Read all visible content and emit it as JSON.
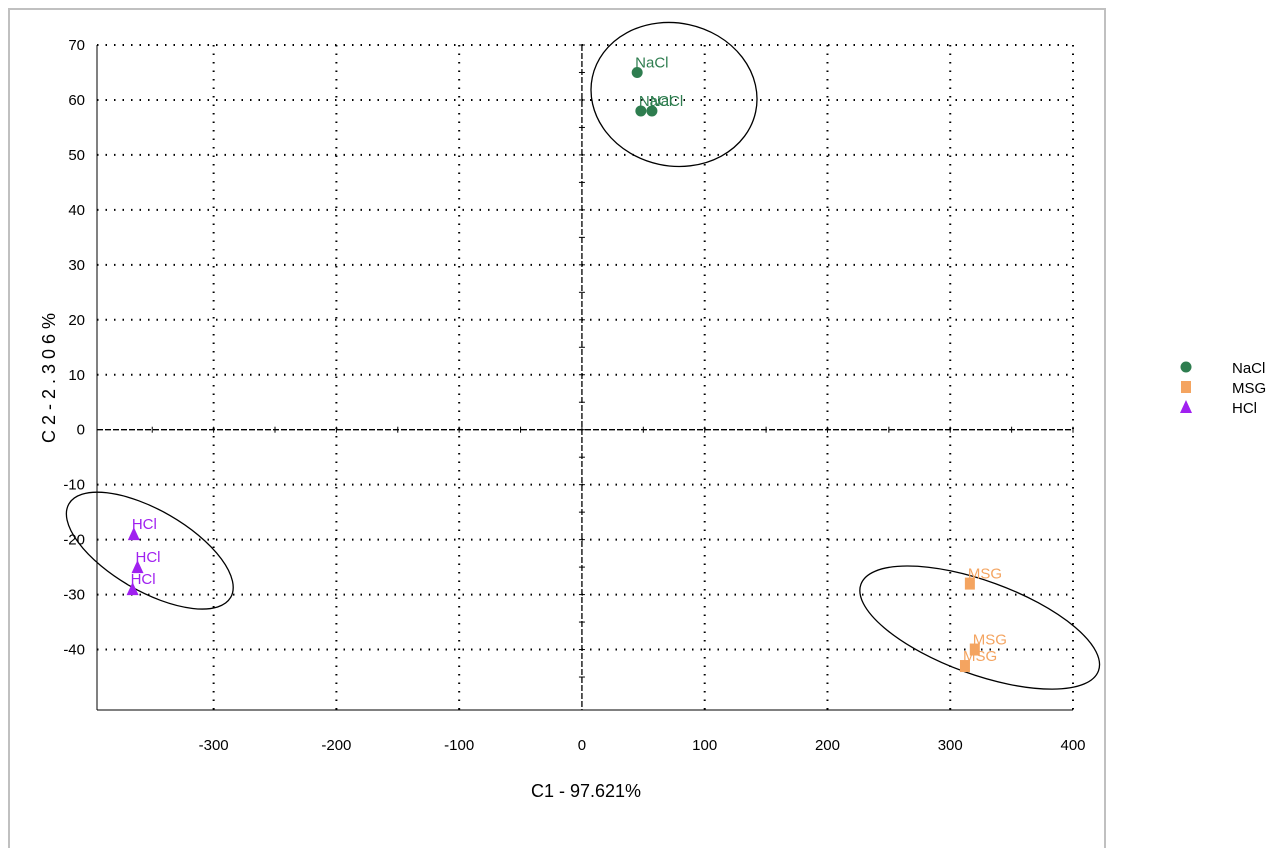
{
  "chart_data": {
    "type": "scatter",
    "xlabel": "C1 - 97.621%",
    "ylabel": "C 2  -  2 . 3 0 6 %",
    "xlim": [
      -395,
      400
    ],
    "ylim": [
      -51,
      70
    ],
    "xticks": [
      -300,
      -200,
      -100,
      0,
      100,
      200,
      300,
      400
    ],
    "yticks": [
      -40,
      -30,
      -20,
      -10,
      0,
      10,
      20,
      30,
      40,
      50,
      60,
      70
    ],
    "grid": true,
    "legend": "right",
    "series": [
      {
        "name": "NaCl",
        "marker": "circle",
        "color": "#2e7d4f",
        "points": [
          {
            "x": 45,
            "y": 65,
            "label": "NaCl"
          },
          {
            "x": 48,
            "y": 58,
            "label": "NaCl"
          },
          {
            "x": 57,
            "y": 58,
            "label": "NaCl"
          }
        ],
        "ellipse": {
          "cx": 75,
          "cy": 61,
          "rx": 68,
          "ry": 13,
          "angle": 12
        }
      },
      {
        "name": "MSG",
        "marker": "square",
        "color": "#f4a460",
        "points": [
          {
            "x": 316,
            "y": -28,
            "label": "MSG"
          },
          {
            "x": 320,
            "y": -40,
            "label": "MSG"
          },
          {
            "x": 312,
            "y": -43,
            "label": "MSG"
          }
        ],
        "ellipse": {
          "cx": 324,
          "cy": -36,
          "rx": 38,
          "ry": 23,
          "angle": -70
        }
      },
      {
        "name": "HCl",
        "marker": "triangle",
        "color": "#a020f0",
        "points": [
          {
            "x": -365,
            "y": -19,
            "label": "HCl"
          },
          {
            "x": -362,
            "y": -25,
            "label": "HCl"
          },
          {
            "x": -366,
            "y": -29,
            "label": "HCl"
          }
        ],
        "ellipse": {
          "cx": -352,
          "cy": -22,
          "rx": 33,
          "ry": 17,
          "angle": -60
        }
      }
    ]
  }
}
